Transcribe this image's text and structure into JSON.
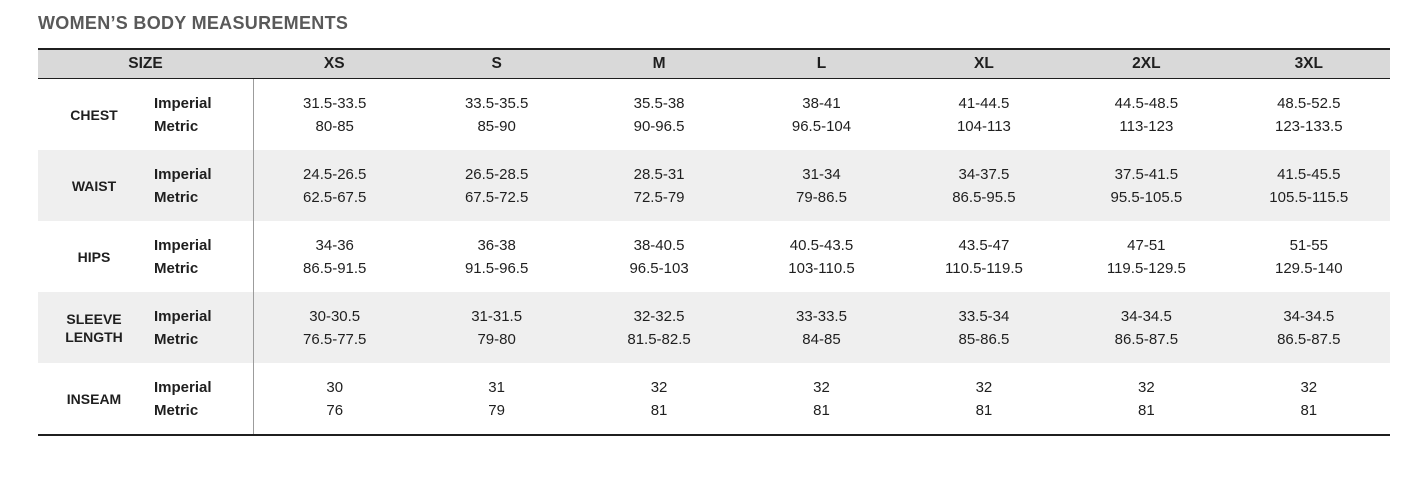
{
  "chart_data": {
    "type": "table",
    "title": "WOMEN’S BODY MEASUREMENTS",
    "size_header": "SIZE",
    "sizes": [
      "XS",
      "S",
      "M",
      "L",
      "XL",
      "2XL",
      "3XL"
    ],
    "unit_imperial": "Imperial",
    "unit_metric": "Metric",
    "rows": [
      {
        "label": "CHEST",
        "imperial": [
          "31.5-33.5",
          "33.5-35.5",
          "35.5-38",
          "38-41",
          "41-44.5",
          "44.5-48.5",
          "48.5-52.5"
        ],
        "metric": [
          "80-85",
          "85-90",
          "90-96.5",
          "96.5-104",
          "104-113",
          "113-123",
          "123-133.5"
        ]
      },
      {
        "label": "WAIST",
        "imperial": [
          "24.5-26.5",
          "26.5-28.5",
          "28.5-31",
          "31-34",
          "34-37.5",
          "37.5-41.5",
          "41.5-45.5"
        ],
        "metric": [
          "62.5-67.5",
          "67.5-72.5",
          "72.5-79",
          "79-86.5",
          "86.5-95.5",
          "95.5-105.5",
          "105.5-115.5"
        ]
      },
      {
        "label": "HIPS",
        "imperial": [
          "34-36",
          "36-38",
          "38-40.5",
          "40.5-43.5",
          "43.5-47",
          "47-51",
          "51-55"
        ],
        "metric": [
          "86.5-91.5",
          "91.5-96.5",
          "96.5-103",
          "103-110.5",
          "110.5-119.5",
          "119.5-129.5",
          "129.5-140"
        ]
      },
      {
        "label": "SLEEVE LENGTH",
        "imperial": [
          "30-30.5",
          "31-31.5",
          "32-32.5",
          "33-33.5",
          "33.5-34",
          "34-34.5",
          "34-34.5"
        ],
        "metric": [
          "76.5-77.5",
          "79-80",
          "81.5-82.5",
          "84-85",
          "85-86.5",
          "86.5-87.5",
          "86.5-87.5"
        ]
      },
      {
        "label": "INSEAM",
        "imperial": [
          "30",
          "31",
          "32",
          "32",
          "32",
          "32",
          "32"
        ],
        "metric": [
          "76",
          "79",
          "81",
          "81",
          "81",
          "81",
          "81"
        ]
      }
    ],
    "layout_hints": {
      "header_bg": "#d9d9d9",
      "alt_row_bg": "#efefef",
      "title_color": "#595959",
      "border_dark": "#1f1f1f",
      "divider_color": "#9c9c9c"
    }
  }
}
